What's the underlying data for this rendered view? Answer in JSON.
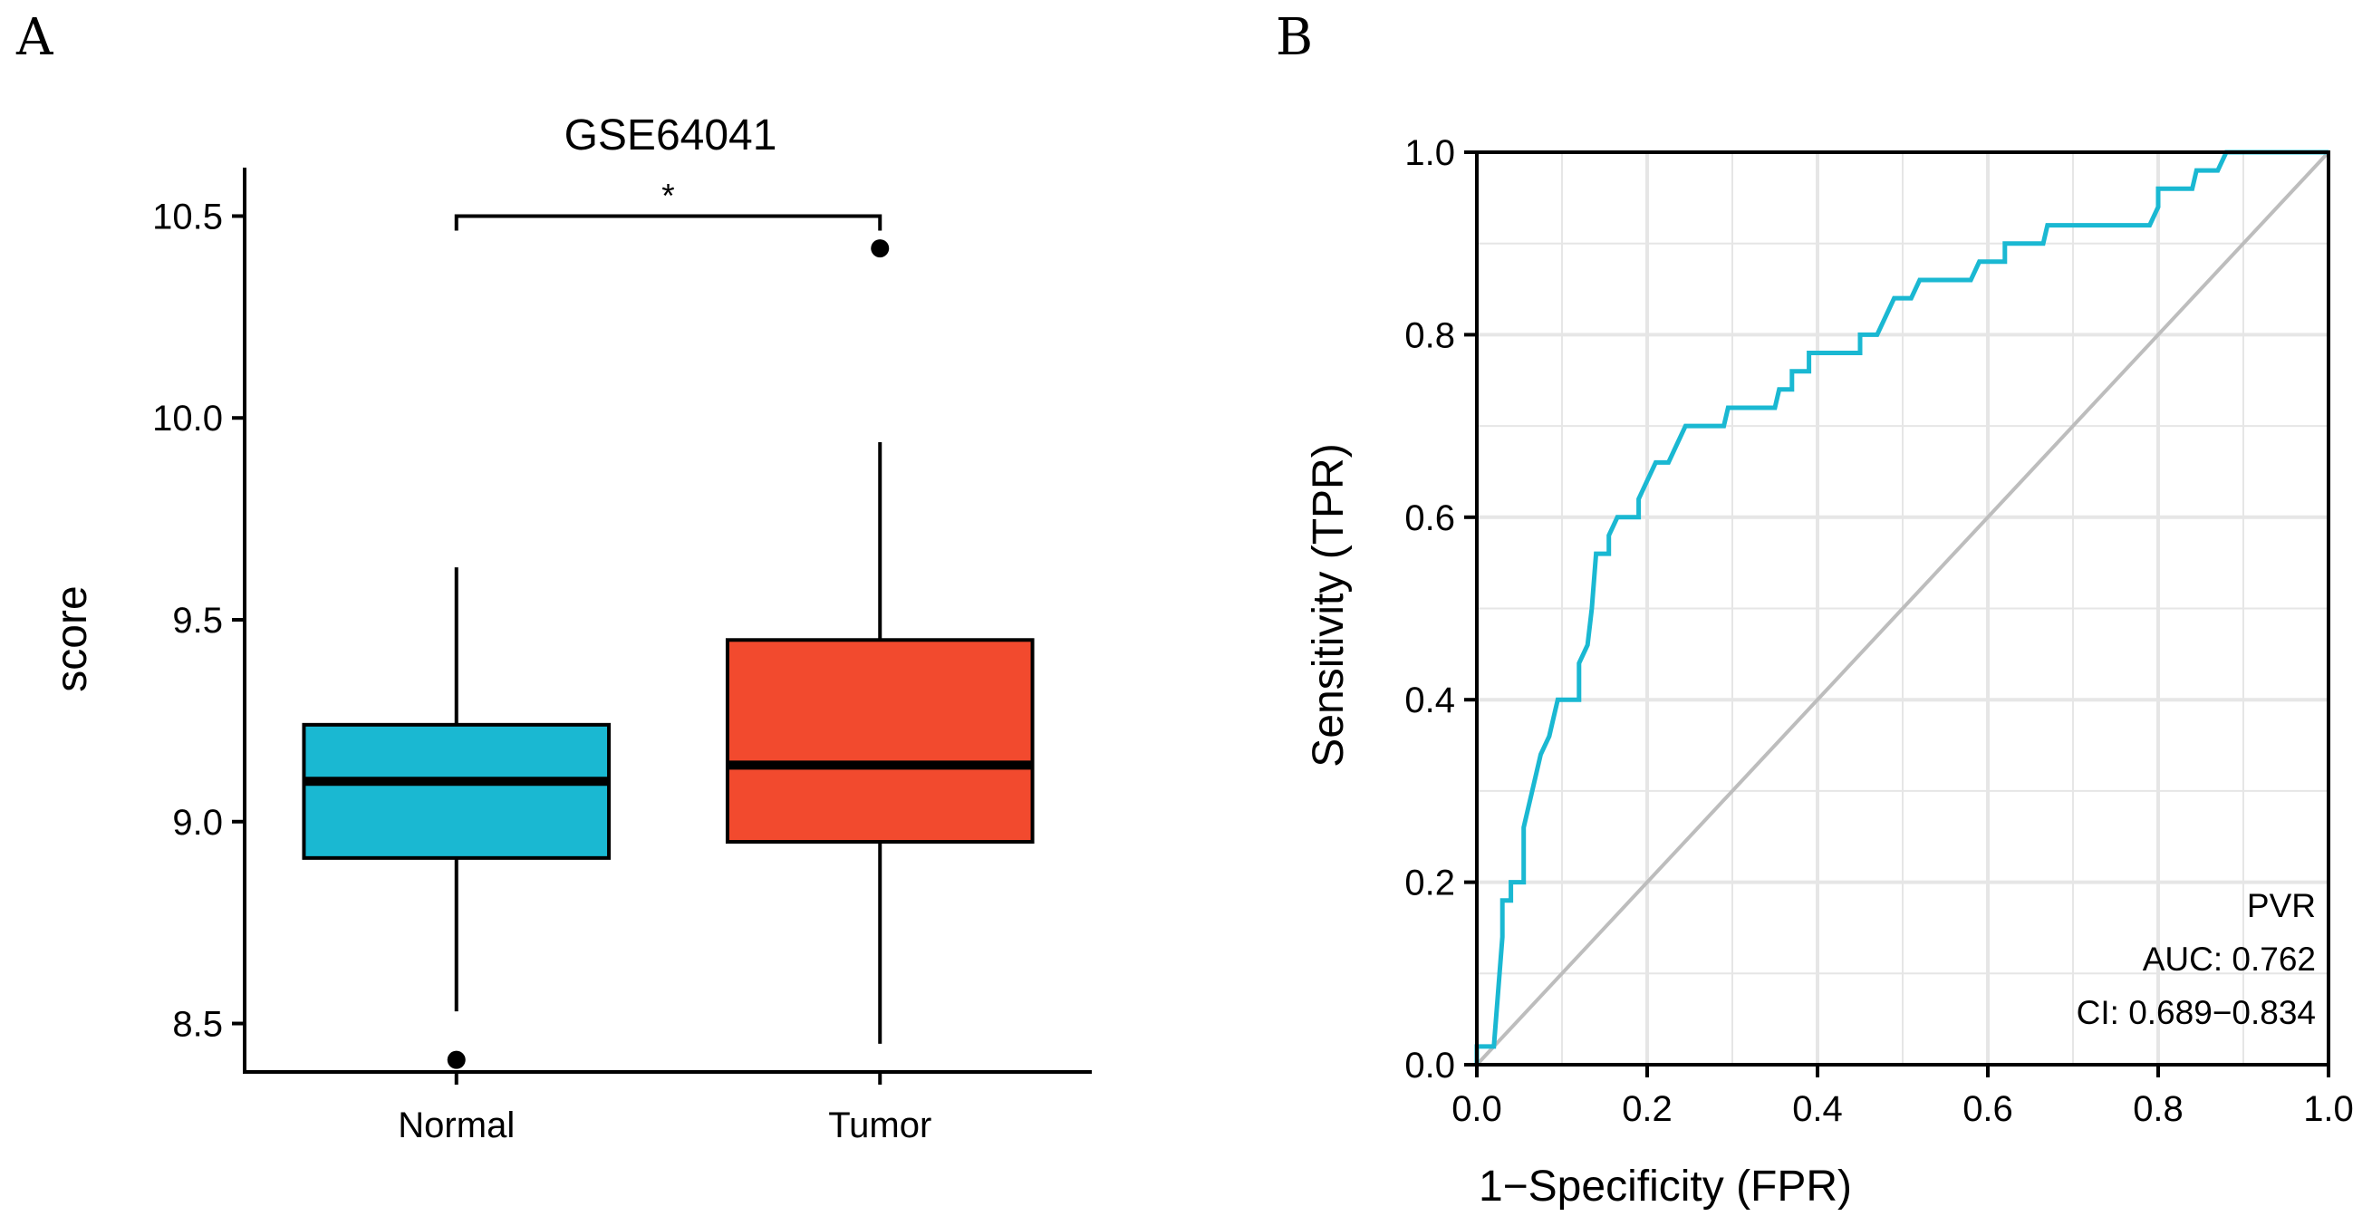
{
  "panels": {
    "a_label": "A",
    "b_label": "B"
  },
  "chart_data": [
    {
      "type": "box",
      "title": "GSE64041",
      "xlabel": "",
      "ylabel": "score",
      "ylim": [
        8.38,
        10.62
      ],
      "yticks": [
        8.5,
        9.0,
        9.5,
        10.0,
        10.5
      ],
      "ytick_labels": [
        "8.5",
        "9.0",
        "9.5",
        "10.0",
        "10.5"
      ],
      "significance": "*",
      "categories": [
        "Normal",
        "Tumor"
      ],
      "series": [
        {
          "category": "Normal",
          "color": "#1ab8d2",
          "whisker_low": 8.53,
          "q1": 8.91,
          "median": 9.1,
          "q3": 9.24,
          "whisker_high": 9.63,
          "outliers": [
            8.41
          ]
        },
        {
          "category": "Tumor",
          "color": "#f24a2e",
          "whisker_low": 8.45,
          "q1": 8.95,
          "median": 9.14,
          "q3": 9.45,
          "whisker_high": 9.94,
          "outliers": [
            10.42
          ]
        }
      ]
    },
    {
      "type": "line",
      "title": "",
      "xlabel": "1−Specificity (FPR)",
      "ylabel": "Sensitivity (TPR)",
      "xlim": [
        0,
        1
      ],
      "ylim": [
        0,
        1
      ],
      "xticks": [
        0,
        0.2,
        0.4,
        0.6,
        0.8,
        1.0
      ],
      "xtick_labels": [
        "0.0",
        "0.2",
        "0.4",
        "0.6",
        "0.8",
        "1.0"
      ],
      "yticks": [
        0,
        0.2,
        0.4,
        0.6,
        0.8,
        1.0
      ],
      "ytick_labels": [
        "0.0",
        "0.2",
        "0.4",
        "0.6",
        "0.8",
        "1.0"
      ],
      "grid": true,
      "roc_color": "#1ab8d2",
      "diagonal_color": "#bdbdbd",
      "annotation": [
        "PVR",
        "AUC: 0.762",
        "CI: 0.689−0.834"
      ],
      "roc_points": [
        [
          0.0,
          0.0
        ],
        [
          0.0,
          0.02
        ],
        [
          0.02,
          0.02
        ],
        [
          0.03,
          0.14
        ],
        [
          0.03,
          0.18
        ],
        [
          0.04,
          0.18
        ],
        [
          0.04,
          0.2
        ],
        [
          0.055,
          0.2
        ],
        [
          0.055,
          0.26
        ],
        [
          0.065,
          0.3
        ],
        [
          0.075,
          0.34
        ],
        [
          0.085,
          0.36
        ],
        [
          0.09,
          0.38
        ],
        [
          0.095,
          0.4
        ],
        [
          0.12,
          0.4
        ],
        [
          0.12,
          0.44
        ],
        [
          0.13,
          0.46
        ],
        [
          0.135,
          0.5
        ],
        [
          0.14,
          0.56
        ],
        [
          0.155,
          0.56
        ],
        [
          0.155,
          0.58
        ],
        [
          0.165,
          0.6
        ],
        [
          0.19,
          0.6
        ],
        [
          0.19,
          0.62
        ],
        [
          0.2,
          0.64
        ],
        [
          0.21,
          0.66
        ],
        [
          0.225,
          0.66
        ],
        [
          0.235,
          0.68
        ],
        [
          0.245,
          0.7
        ],
        [
          0.29,
          0.7
        ],
        [
          0.295,
          0.72
        ],
        [
          0.35,
          0.72
        ],
        [
          0.355,
          0.74
        ],
        [
          0.37,
          0.74
        ],
        [
          0.37,
          0.76
        ],
        [
          0.39,
          0.76
        ],
        [
          0.39,
          0.78
        ],
        [
          0.45,
          0.78
        ],
        [
          0.45,
          0.8
        ],
        [
          0.47,
          0.8
        ],
        [
          0.48,
          0.82
        ],
        [
          0.49,
          0.84
        ],
        [
          0.51,
          0.84
        ],
        [
          0.52,
          0.86
        ],
        [
          0.58,
          0.86
        ],
        [
          0.59,
          0.88
        ],
        [
          0.62,
          0.88
        ],
        [
          0.62,
          0.9
        ],
        [
          0.665,
          0.9
        ],
        [
          0.67,
          0.92
        ],
        [
          0.79,
          0.92
        ],
        [
          0.8,
          0.94
        ],
        [
          0.8,
          0.96
        ],
        [
          0.84,
          0.96
        ],
        [
          0.845,
          0.98
        ],
        [
          0.87,
          0.98
        ],
        [
          0.88,
          1.0
        ],
        [
          1.0,
          1.0
        ]
      ]
    }
  ]
}
